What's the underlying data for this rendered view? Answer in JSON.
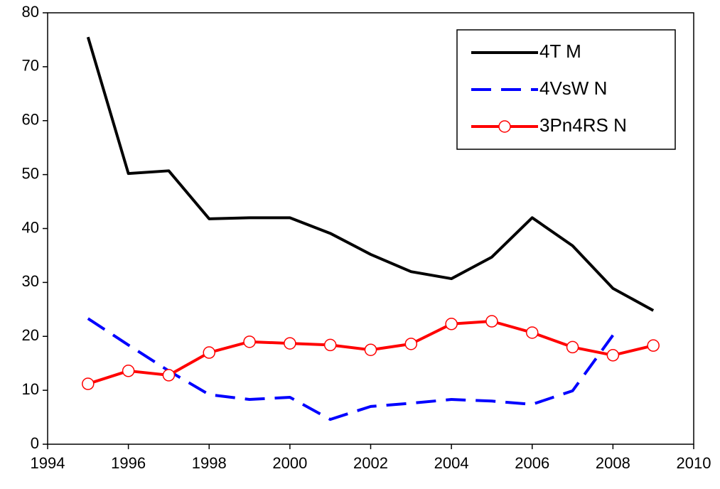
{
  "chart_data": {
    "type": "line",
    "x": [
      1995,
      1996,
      1997,
      1998,
      1999,
      2000,
      2001,
      2002,
      2003,
      2004,
      2005,
      2006,
      2007,
      2008,
      2009
    ],
    "series": [
      {
        "name": "4T M",
        "color": "#000000",
        "style": "solid",
        "marker": "none",
        "values": [
          75.5,
          50.2,
          50.7,
          41.8,
          42.0,
          42.0,
          39.1,
          35.2,
          32.0,
          30.7,
          34.7,
          42.0,
          36.8,
          28.9,
          24.8
        ]
      },
      {
        "name": "4VsW N",
        "color": "#0000ff",
        "style": "dashed",
        "marker": "none",
        "values": [
          23.3,
          18.4,
          13.6,
          9.2,
          8.3,
          8.7,
          4.6,
          7.0,
          7.6,
          8.3,
          8.0,
          7.4,
          9.9,
          20.2,
          null
        ]
      },
      {
        "name": "3Pn4RS N",
        "color": "#ff0000",
        "style": "solid",
        "marker": "circle",
        "values": [
          11.2,
          13.6,
          12.8,
          17.0,
          19.0,
          18.7,
          18.4,
          17.5,
          18.6,
          22.3,
          22.8,
          20.7,
          18.0,
          16.5,
          18.3
        ]
      }
    ],
    "xlim": [
      1994,
      2010
    ],
    "xticks": [
      1994,
      1996,
      1998,
      2000,
      2002,
      2004,
      2006,
      2008,
      2010
    ],
    "ylim": [
      0,
      80
    ],
    "yticks": [
      0,
      10,
      20,
      30,
      40,
      50,
      60,
      70,
      80
    ],
    "grid": false,
    "legend": "upper right"
  }
}
